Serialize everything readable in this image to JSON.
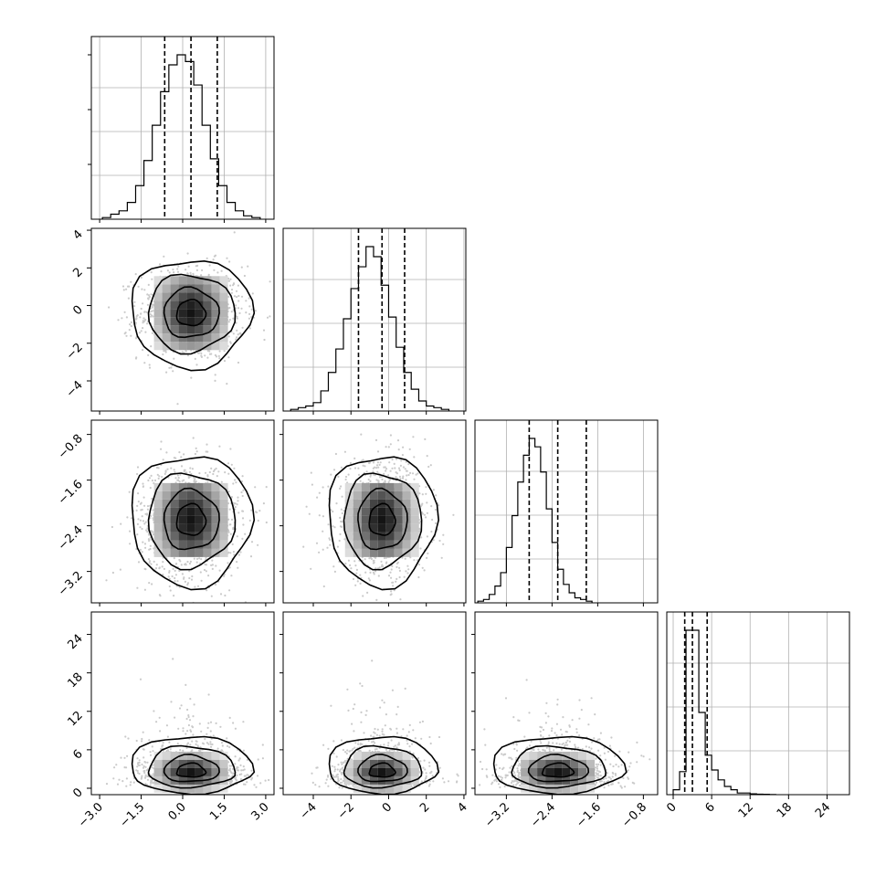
{
  "chart_data": {
    "type": "corner",
    "title": "",
    "grid": true,
    "params": [
      {
        "label": "",
        "range": [
          -3.3,
          3.3
        ],
        "ticks": [
          "−3.0",
          "−1.5",
          "0.0",
          "1.5",
          "3.0"
        ],
        "tick_values": [
          -3.0,
          -1.5,
          0.0,
          1.5,
          3.0
        ],
        "quantiles": [
          -0.65,
          0.3,
          1.25
        ],
        "hist_bins": {
          "start": -2.9,
          "width": 0.3,
          "counts": [
            1,
            3,
            5,
            10,
            20,
            35,
            56,
            76,
            92,
            98,
            94,
            80,
            56,
            36,
            20,
            10,
            5,
            2,
            1
          ]
        }
      },
      {
        "label": "",
        "range": [
          -5.6,
          4.1
        ],
        "ticks": [
          "−4",
          "−2",
          "0",
          "2",
          "4"
        ],
        "tick_values": [
          -4,
          -2,
          0,
          2,
          4
        ],
        "quantiles": [
          -1.6,
          -0.35,
          0.85
        ],
        "hist_bins": {
          "start": -5.2,
          "width": 0.4,
          "counts": [
            1,
            2,
            3,
            5,
            12,
            23,
            37,
            55,
            73,
            86,
            98,
            92,
            75,
            56,
            38,
            23,
            13,
            6,
            3,
            2,
            1
          ]
        }
      },
      {
        "label": "",
        "range": [
          -3.75,
          -0.55
        ],
        "ticks": [
          "−3.2",
          "−2.4",
          "−1.6",
          "−0.8"
        ],
        "tick_values": [
          -3.2,
          -2.4,
          -1.6,
          -0.8
        ],
        "quantiles": [
          -2.8,
          -2.3,
          -1.8
        ],
        "hist_bins": {
          "start": -3.7,
          "width": 0.1,
          "counts": [
            1,
            2,
            5,
            10,
            18,
            33,
            52,
            72,
            88,
            98,
            93,
            78,
            56,
            36,
            20,
            11,
            6,
            3,
            2,
            1
          ]
        }
      },
      {
        "label": "",
        "range": [
          -1.0,
          27.5
        ],
        "ticks": [
          "0",
          "6",
          "12",
          "18",
          "24"
        ],
        "tick_values": [
          0,
          6,
          12,
          18,
          24
        ],
        "quantiles": [
          1.8,
          3.0,
          5.3
        ],
        "hist_bins": {
          "start": 0.0,
          "width": 1.0,
          "counts": [
            3,
            14,
            100,
            100,
            50,
            24,
            15,
            9,
            5,
            3,
            1,
            1,
            0.5,
            0.3,
            0.2,
            0.1
          ]
        }
      }
    ],
    "pair_stats": [
      {
        "row": 1,
        "col": 0,
        "mean": [
          0.3,
          -0.4
        ],
        "sd": [
          0.95,
          1.25
        ],
        "shape": "normal"
      },
      {
        "row": 2,
        "col": 0,
        "mean": [
          0.3,
          -2.3
        ],
        "sd": [
          0.95,
          0.5
        ],
        "shape": "normal"
      },
      {
        "row": 2,
        "col": 1,
        "mean": [
          -0.35,
          -2.3
        ],
        "sd": [
          1.25,
          0.5
        ],
        "shape": "normal"
      },
      {
        "row": 3,
        "col": 0,
        "mean": [
          0.3,
          2.5
        ],
        "sd": [
          0.95,
          2.2
        ],
        "shape": "skewed"
      },
      {
        "row": 3,
        "col": 1,
        "mean": [
          -0.35,
          2.5
        ],
        "sd": [
          1.25,
          2.2
        ],
        "shape": "skewed"
      },
      {
        "row": 3,
        "col": 2,
        "mean": [
          -2.3,
          2.5
        ],
        "sd": [
          0.5,
          2.2
        ],
        "shape": "skewed"
      }
    ]
  }
}
